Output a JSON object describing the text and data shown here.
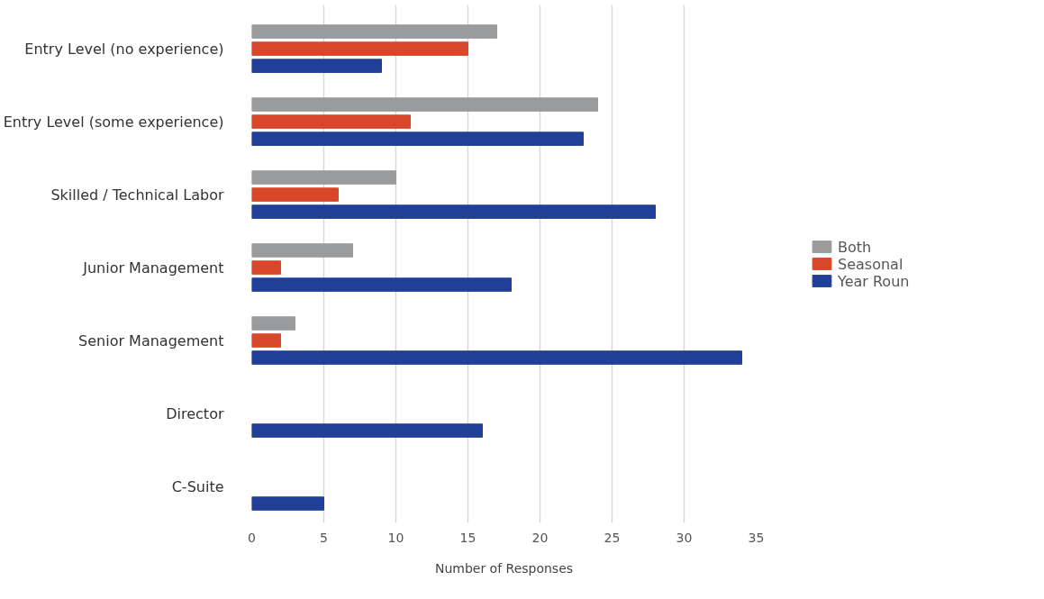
{
  "chart_data": {
    "type": "bar",
    "orientation": "horizontal",
    "xlabel": "Number of Responses",
    "categories": [
      "Entry Level (no experience)",
      "Entry Level (some experience)",
      "Skilled / Technical Labor",
      "Junior Management",
      "Senior Management",
      "Director",
      "C-Suite"
    ],
    "series": [
      {
        "name": "Both",
        "color": "#9a9b9d",
        "values": [
          17,
          24,
          10,
          7,
          3,
          null,
          null
        ]
      },
      {
        "name": "Seasonal",
        "color": "#d9472a",
        "values": [
          15,
          11,
          6,
          2,
          2,
          null,
          null
        ]
      },
      {
        "name": "Year Roun",
        "color": "#213f96",
        "values": [
          9,
          23,
          28,
          18,
          34,
          16,
          5
        ]
      }
    ],
    "xlim": [
      0,
      35
    ],
    "xticks": [
      0,
      5,
      10,
      15,
      20,
      25,
      30,
      35
    ],
    "grid": "x",
    "legend": "right"
  }
}
